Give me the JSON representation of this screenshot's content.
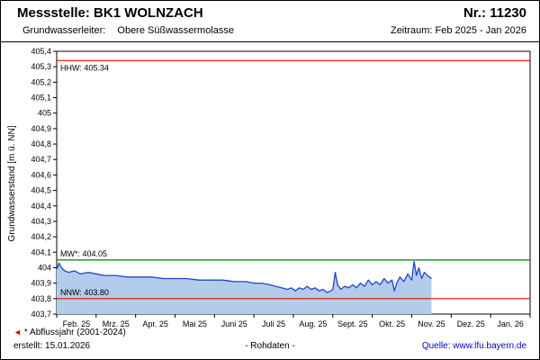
{
  "header": {
    "station_label": "Messstelle: BK1 WOLNZACH",
    "number_label": "Nr.: 11230",
    "aquifer_label": "Grundwasserleiter:",
    "aquifer_value": "Obere Süßwassermolasse",
    "period_label": "Zeitraum: Feb 2025 - Jan 2026"
  },
  "chart_data": {
    "type": "area",
    "ylabel": "Grundwasserstand [m ü. NN]",
    "xlabel": "",
    "ylim": [
      403.7,
      405.4
    ],
    "ytick_step": 0.1,
    "ytick_labels": [
      "405,4",
      "405,3",
      "405,2",
      "405,1",
      "405",
      "404,9",
      "404,8",
      "404,7",
      "404,6",
      "404,5",
      "404,4",
      "404,3",
      "404,2",
      "404,1",
      "404",
      "403,9",
      "403,8",
      "403,7"
    ],
    "xtick_labels": [
      "Feb. 25",
      "Mrz. 25",
      "Apr. 25",
      "Mai 25",
      "Juni 25",
      "Juli 25",
      "Aug. 25",
      "Sept. 25",
      "Okt. 25",
      "Nov. 25",
      "Dez. 25",
      "Jan. 26"
    ],
    "grid": false,
    "legend": false,
    "line_color": "#2244cc",
    "fill_color": "#b3cceb",
    "reference_lines": [
      {
        "name": "HHW",
        "label": "HHW: 405.34",
        "value": 405.34,
        "color": "#ee0000",
        "label_pos": "below"
      },
      {
        "name": "MW",
        "label": "MW*: 404.05",
        "value": 404.05,
        "color": "#008000",
        "label_pos": "above"
      },
      {
        "name": "NNW",
        "label": "NNW: 403.80",
        "value": 403.8,
        "color": "#ee0000",
        "label_pos": "above"
      }
    ],
    "series": [
      {
        "name": "Grundwasserstand Rohdaten",
        "x": [
          0.0,
          0.06,
          0.12,
          0.2,
          0.3,
          0.45,
          0.6,
          0.8,
          1.0,
          1.2,
          1.5,
          1.8,
          2.1,
          2.4,
          2.7,
          3.0,
          3.3,
          3.6,
          3.9,
          4.2,
          4.5,
          4.8,
          5.0,
          5.2,
          5.4,
          5.55,
          5.7,
          5.85,
          5.95,
          6.05,
          6.15,
          6.25,
          6.35,
          6.45,
          6.55,
          6.65,
          6.75,
          6.85,
          6.95,
          7.0,
          7.06,
          7.12,
          7.2,
          7.3,
          7.4,
          7.5,
          7.6,
          7.7,
          7.8,
          7.9,
          8.0,
          8.1,
          8.2,
          8.3,
          8.4,
          8.5,
          8.56,
          8.62,
          8.7,
          8.8,
          8.9,
          9.0,
          9.06,
          9.12,
          9.18,
          9.25,
          9.32,
          9.4,
          9.5
        ],
        "y": [
          403.99,
          404.03,
          404.0,
          403.98,
          403.97,
          403.98,
          403.96,
          403.97,
          403.96,
          403.95,
          403.95,
          403.94,
          403.94,
          403.94,
          403.93,
          403.93,
          403.93,
          403.92,
          403.92,
          403.92,
          403.91,
          403.91,
          403.9,
          403.9,
          403.89,
          403.88,
          403.87,
          403.86,
          403.87,
          403.85,
          403.87,
          403.86,
          403.88,
          403.86,
          403.87,
          403.85,
          403.86,
          403.84,
          403.85,
          403.86,
          403.97,
          403.89,
          403.86,
          403.88,
          403.87,
          403.89,
          403.87,
          403.9,
          403.88,
          403.92,
          403.89,
          403.91,
          403.89,
          403.93,
          403.9,
          403.92,
          403.85,
          403.9,
          403.94,
          403.91,
          403.96,
          403.92,
          404.04,
          403.95,
          404.0,
          403.93,
          403.97,
          403.95,
          403.93
        ]
      }
    ]
  },
  "footer": {
    "triangle_icon": "◄",
    "footnote": "* Abflussjahr (2001-2024)",
    "created": "erstellt:  15.01.2026",
    "center": "- Rohdaten -",
    "source": "Quelle: www.lfu.bayern.de"
  }
}
